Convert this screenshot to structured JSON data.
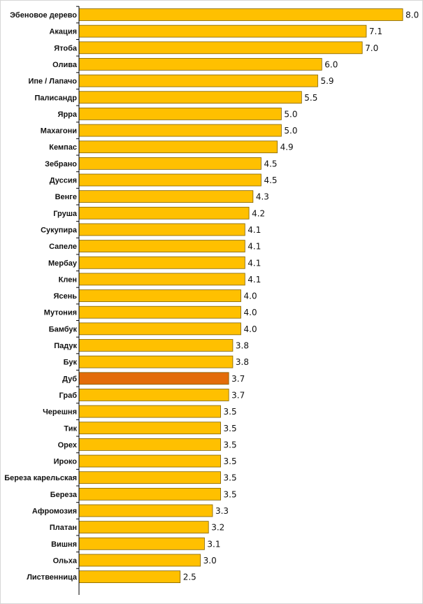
{
  "chart_data": {
    "type": "bar",
    "orientation": "horizontal",
    "title": "",
    "xlabel": "",
    "ylabel": "",
    "grid": false,
    "categories": [
      "Эбеновое дерево",
      "Акация",
      "Ятоба",
      "Олива",
      "Ипе / Лапачо",
      "Палисандр",
      "Ярра",
      "Махагони",
      "Кемпас",
      "Зебрано",
      "Дуссия",
      "Венге",
      "Груша",
      "Сукупира",
      "Сапеле",
      "Мербау",
      "Клен",
      "Ясень",
      "Мутония",
      "Бамбук",
      "Падук",
      "Бук",
      "Дуб",
      "Граб",
      "Черешня",
      "Тик",
      "Орех",
      "Ироко",
      "Береза карельская",
      "Береза",
      "Афромозия",
      "Платан",
      "Вишня",
      "Ольха",
      "Лиственница"
    ],
    "values": [
      8.0,
      7.1,
      7.0,
      6.0,
      5.9,
      5.5,
      5.0,
      5.0,
      4.9,
      4.5,
      4.5,
      4.3,
      4.2,
      4.1,
      4.1,
      4.1,
      4.1,
      4.0,
      4.0,
      4.0,
      3.8,
      3.8,
      3.7,
      3.7,
      3.5,
      3.5,
      3.5,
      3.5,
      3.5,
      3.5,
      3.3,
      3.2,
      3.1,
      3.0,
      2.5
    ],
    "value_labels": [
      "8.0",
      "7.1",
      "7.0",
      "6.0",
      "5.9",
      "5.5",
      "5.0",
      "5.0",
      "4.9",
      "4.5",
      "4.5",
      "4.3",
      "4.2",
      "4.1",
      "4.1",
      "4.1",
      "4.1",
      "4.0",
      "4.0",
      "4.0",
      "3.8",
      "3.8",
      "3.7",
      "3.7",
      "3.5",
      "3.5",
      "3.5",
      "3.5",
      "3.5",
      "3.5",
      "3.3",
      "3.2",
      "3.1",
      "3.0",
      "2.5"
    ],
    "xlim": [
      0,
      8.0
    ],
    "highlight_category": "Дуб",
    "colors": {
      "bar": "#FFC000",
      "bar_highlight": "#E36C0A",
      "bar_border": "#7F6000",
      "axis": "#000000",
      "text": "#111111"
    }
  }
}
